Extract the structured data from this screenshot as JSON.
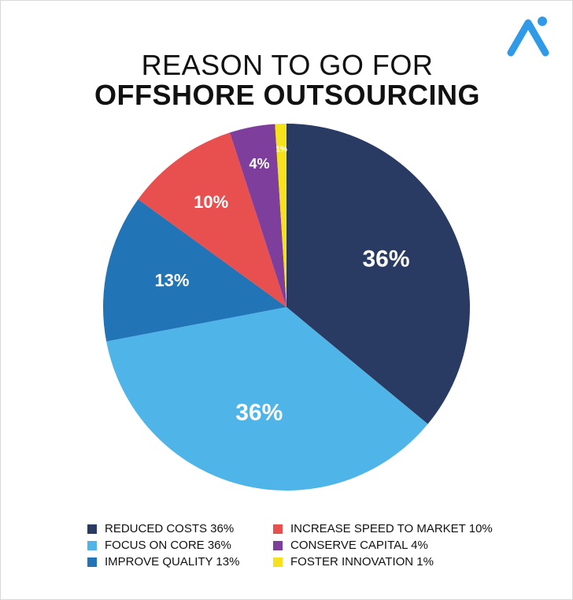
{
  "title": {
    "line1": "REASON TO GO FOR",
    "line2": "OFFSHORE OUTSOURCING"
  },
  "logo_icon": "brand-logo-icon",
  "chart_data": {
    "type": "pie",
    "title": "REASON TO GO FOR OFFSHORE OUTSOURCING",
    "slices": [
      {
        "label": "REDUCED COSTS",
        "value": 36,
        "display": "36%",
        "color": "#293b62"
      },
      {
        "label": "FOCUS ON CORE",
        "value": 36,
        "display": "36%",
        "color": "#4fb4e8"
      },
      {
        "label": "IMPROVE QUALITY",
        "value": 13,
        "display": "13%",
        "color": "#2174b6"
      },
      {
        "label": "INCREASE SPEED TO MARKET",
        "value": 10,
        "display": "10%",
        "color": "#e84f4f"
      },
      {
        "label": "CONSERVE CAPITAL",
        "value": 4,
        "display": "4%",
        "color": "#7d3f9b"
      },
      {
        "label": "FOSTER INNOVATION",
        "value": 1,
        "display": "1%",
        "color": "#f5e21a"
      }
    ],
    "start": "12 o'clock",
    "direction": "clockwise",
    "legend_placement": "bottom"
  },
  "legend": {
    "col1": [
      {
        "text": "REDUCED COSTS 36%",
        "color": "#293b62"
      },
      {
        "text": "FOCUS ON CORE 36%",
        "color": "#4fb4e8"
      },
      {
        "text": "IMPROVE QUALITY 13%",
        "color": "#2174b6"
      }
    ],
    "col2": [
      {
        "text": "INCREASE SPEED TO MARKET 10%",
        "color": "#e84f4f"
      },
      {
        "text": "CONSERVE CAPITAL 4%",
        "color": "#7d3f9b"
      },
      {
        "text": "FOSTER INNOVATION 1%",
        "color": "#f5e21a"
      }
    ]
  }
}
